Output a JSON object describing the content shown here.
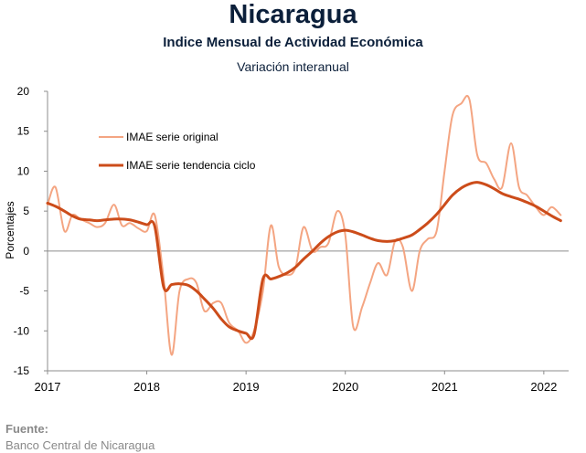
{
  "header": {
    "title": "Nicaragua",
    "subtitle": "Indice Mensual de  Actividad Económica",
    "subtitle2": "Variación interanual"
  },
  "source": {
    "label": "Fuente:",
    "value": "Banco Central de Nicaragua"
  },
  "chart_data": {
    "type": "line",
    "ylabel": "Porcentajes",
    "xlabel": "",
    "ylim": [
      -15,
      20
    ],
    "yticks": [
      20,
      15,
      10,
      5,
      0,
      -5,
      -10,
      -15
    ],
    "xlim": [
      2017.0,
      2022.25
    ],
    "xticks": [
      "2017",
      "2018",
      "2019",
      "2020",
      "2021",
      "2022"
    ],
    "grid": false,
    "legend": "top-left",
    "series": [
      {
        "name": "IMAE serie original",
        "color": "#f4a582",
        "points": [
          [
            2017.0,
            5.8
          ],
          [
            2017.08,
            8.0
          ],
          [
            2017.17,
            2.5
          ],
          [
            2017.25,
            4.5
          ],
          [
            2017.33,
            4.0
          ],
          [
            2017.42,
            3.5
          ],
          [
            2017.5,
            3.0
          ],
          [
            2017.58,
            3.5
          ],
          [
            2017.67,
            5.8
          ],
          [
            2017.75,
            3.2
          ],
          [
            2017.83,
            3.5
          ],
          [
            2017.92,
            2.8
          ],
          [
            2018.0,
            2.5
          ],
          [
            2018.08,
            4.5
          ],
          [
            2018.17,
            -3.5
          ],
          [
            2018.25,
            -13.0
          ],
          [
            2018.33,
            -5.0
          ],
          [
            2018.42,
            -3.5
          ],
          [
            2018.5,
            -4.0
          ],
          [
            2018.58,
            -7.5
          ],
          [
            2018.67,
            -6.5
          ],
          [
            2018.75,
            -6.5
          ],
          [
            2018.83,
            -9.0
          ],
          [
            2018.92,
            -10.0
          ],
          [
            2019.0,
            -11.5
          ],
          [
            2019.08,
            -10.0
          ],
          [
            2019.17,
            -5.0
          ],
          [
            2019.25,
            3.2
          ],
          [
            2019.33,
            -2.0
          ],
          [
            2019.42,
            -3.0
          ],
          [
            2019.5,
            -2.0
          ],
          [
            2019.58,
            3.0
          ],
          [
            2019.67,
            0.0
          ],
          [
            2019.75,
            0.5
          ],
          [
            2019.83,
            1.0
          ],
          [
            2019.92,
            5.0
          ],
          [
            2020.0,
            2.0
          ],
          [
            2020.08,
            -9.5
          ],
          [
            2020.17,
            -7.0
          ],
          [
            2020.25,
            -4.0
          ],
          [
            2020.33,
            -1.5
          ],
          [
            2020.42,
            -3.0
          ],
          [
            2020.5,
            1.2
          ],
          [
            2020.58,
            0.5
          ],
          [
            2020.67,
            -5.0
          ],
          [
            2020.75,
            0.0
          ],
          [
            2020.83,
            1.5
          ],
          [
            2020.92,
            2.5
          ],
          [
            2021.0,
            10.0
          ],
          [
            2021.08,
            17.0
          ],
          [
            2021.17,
            18.5
          ],
          [
            2021.25,
            19.0
          ],
          [
            2021.33,
            12.0
          ],
          [
            2021.42,
            11.0
          ],
          [
            2021.5,
            9.0
          ],
          [
            2021.58,
            8.0
          ],
          [
            2021.67,
            13.5
          ],
          [
            2021.75,
            8.0
          ],
          [
            2021.83,
            7.0
          ],
          [
            2021.92,
            5.5
          ],
          [
            2022.0,
            4.5
          ],
          [
            2022.08,
            5.5
          ],
          [
            2022.17,
            4.5
          ]
        ]
      },
      {
        "name": "IMAE serie  tendencia ciclo",
        "color": "#cc4c1a",
        "points": [
          [
            2017.0,
            6.0
          ],
          [
            2017.08,
            5.6
          ],
          [
            2017.17,
            5.0
          ],
          [
            2017.25,
            4.4
          ],
          [
            2017.33,
            4.0
          ],
          [
            2017.42,
            3.9
          ],
          [
            2017.5,
            3.8
          ],
          [
            2017.58,
            3.9
          ],
          [
            2017.67,
            4.0
          ],
          [
            2017.75,
            4.0
          ],
          [
            2017.83,
            3.9
          ],
          [
            2017.92,
            3.6
          ],
          [
            2018.0,
            3.3
          ],
          [
            2018.08,
            3.1
          ],
          [
            2018.17,
            -4.5
          ],
          [
            2018.25,
            -4.2
          ],
          [
            2018.33,
            -4.1
          ],
          [
            2018.42,
            -4.3
          ],
          [
            2018.5,
            -5.0
          ],
          [
            2018.58,
            -6.0
          ],
          [
            2018.67,
            -7.2
          ],
          [
            2018.75,
            -8.5
          ],
          [
            2018.83,
            -9.5
          ],
          [
            2018.92,
            -10.0
          ],
          [
            2019.0,
            -10.3
          ],
          [
            2019.08,
            -10.5
          ],
          [
            2019.17,
            -3.5
          ],
          [
            2019.25,
            -3.5
          ],
          [
            2019.33,
            -3.2
          ],
          [
            2019.42,
            -2.7
          ],
          [
            2019.5,
            -2.0
          ],
          [
            2019.58,
            -1.0
          ],
          [
            2019.67,
            0.0
          ],
          [
            2019.75,
            1.0
          ],
          [
            2019.83,
            1.8
          ],
          [
            2019.92,
            2.4
          ],
          [
            2020.0,
            2.6
          ],
          [
            2020.08,
            2.4
          ],
          [
            2020.17,
            2.0
          ],
          [
            2020.25,
            1.6
          ],
          [
            2020.33,
            1.3
          ],
          [
            2020.42,
            1.2
          ],
          [
            2020.5,
            1.3
          ],
          [
            2020.58,
            1.6
          ],
          [
            2020.67,
            2.0
          ],
          [
            2020.75,
            2.7
          ],
          [
            2020.83,
            3.5
          ],
          [
            2020.92,
            4.6
          ],
          [
            2021.0,
            5.8
          ],
          [
            2021.08,
            7.0
          ],
          [
            2021.17,
            7.9
          ],
          [
            2021.25,
            8.4
          ],
          [
            2021.33,
            8.6
          ],
          [
            2021.42,
            8.3
          ],
          [
            2021.5,
            7.8
          ],
          [
            2021.58,
            7.2
          ],
          [
            2021.67,
            6.8
          ],
          [
            2021.75,
            6.5
          ],
          [
            2021.83,
            6.1
          ],
          [
            2021.92,
            5.6
          ],
          [
            2022.0,
            5.0
          ],
          [
            2022.08,
            4.4
          ],
          [
            2022.17,
            3.8
          ]
        ]
      }
    ]
  }
}
